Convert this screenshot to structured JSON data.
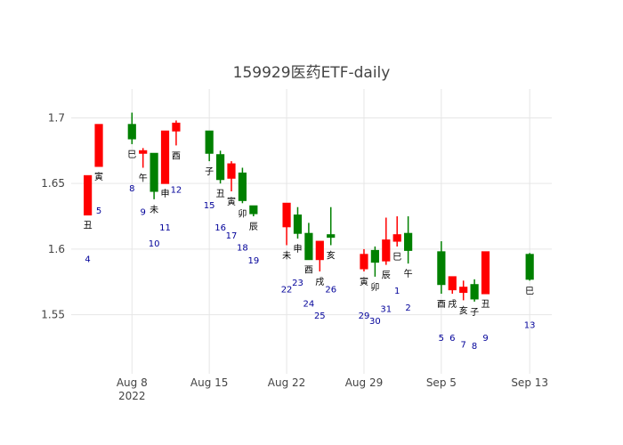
{
  "chart_data": {
    "type": "candlestick",
    "title": "159929医药ETF-daily",
    "colors": {
      "up": "#ff0000",
      "down": "#008000",
      "grid": "#e6e6e6",
      "label": "#000099"
    },
    "y_range": [
      1.505,
      1.722
    ],
    "y_ticks": [
      1.55,
      1.6,
      1.65,
      1.7
    ],
    "x_ticks": [
      {
        "date": "2022-08-08",
        "label": "Aug 8",
        "sublabel": "2022"
      },
      {
        "date": "2022-08-15",
        "label": "Aug 15",
        "sublabel": ""
      },
      {
        "date": "2022-08-22",
        "label": "Aug 22",
        "sublabel": ""
      },
      {
        "date": "2022-08-29",
        "label": "Aug 29",
        "sublabel": ""
      },
      {
        "date": "2022-09-05",
        "label": "Sep 5",
        "sublabel": ""
      },
      {
        "date": "2022-09-13",
        "label": "Sep 13",
        "sublabel": ""
      }
    ],
    "candles": [
      {
        "date": "2022-08-04",
        "open": 1.626,
        "high": 1.656,
        "low": 1.626,
        "close": 1.656,
        "branch": "丑",
        "day": "4"
      },
      {
        "date": "2022-08-05",
        "open": 1.663,
        "high": 1.695,
        "low": 1.663,
        "close": 1.695,
        "branch": "寅",
        "day": "5"
      },
      {
        "date": "2022-08-08",
        "open": 1.695,
        "high": 1.704,
        "low": 1.68,
        "close": 1.684,
        "branch": "巳",
        "day": "8"
      },
      {
        "date": "2022-08-09",
        "open": 1.673,
        "high": 1.677,
        "low": 1.662,
        "close": 1.675,
        "branch": "午",
        "day": "9"
      },
      {
        "date": "2022-08-10",
        "open": 1.673,
        "high": 1.673,
        "low": 1.638,
        "close": 1.644,
        "branch": "未",
        "day": "10"
      },
      {
        "date": "2022-08-11",
        "open": 1.65,
        "high": 1.69,
        "low": 1.65,
        "close": 1.69,
        "branch": "申",
        "day": "11"
      },
      {
        "date": "2022-08-12",
        "open": 1.69,
        "high": 1.698,
        "low": 1.679,
        "close": 1.696,
        "branch": "酉",
        "day": "12"
      },
      {
        "date": "2022-08-15",
        "open": 1.69,
        "high": 1.69,
        "low": 1.667,
        "close": 1.673,
        "branch": "子",
        "day": "15"
      },
      {
        "date": "2022-08-16",
        "open": 1.672,
        "high": 1.675,
        "low": 1.65,
        "close": 1.653,
        "branch": "丑",
        "day": "16"
      },
      {
        "date": "2022-08-17",
        "open": 1.654,
        "high": 1.667,
        "low": 1.644,
        "close": 1.665,
        "branch": "寅",
        "day": "17"
      },
      {
        "date": "2022-08-18",
        "open": 1.658,
        "high": 1.662,
        "low": 1.635,
        "close": 1.637,
        "branch": "卯",
        "day": "18"
      },
      {
        "date": "2022-08-19",
        "open": 1.633,
        "high": 1.633,
        "low": 1.625,
        "close": 1.627,
        "branch": "辰",
        "day": "19"
      },
      {
        "date": "2022-08-22",
        "open": 1.617,
        "high": 1.635,
        "low": 1.603,
        "close": 1.635,
        "branch": "未",
        "day": "22"
      },
      {
        "date": "2022-08-23",
        "open": 1.626,
        "high": 1.632,
        "low": 1.608,
        "close": 1.612,
        "branch": "申",
        "day": "23"
      },
      {
        "date": "2022-08-24",
        "open": 1.612,
        "high": 1.62,
        "low": 1.592,
        "close": 1.592,
        "branch": "酉",
        "day": "24"
      },
      {
        "date": "2022-08-25",
        "open": 1.592,
        "high": 1.606,
        "low": 1.583,
        "close": 1.606,
        "branch": "戌",
        "day": "25"
      },
      {
        "date": "2022-08-26",
        "open": 1.611,
        "high": 1.632,
        "low": 1.603,
        "close": 1.609,
        "branch": "亥",
        "day": "26"
      },
      {
        "date": "2022-08-29",
        "open": 1.585,
        "high": 1.6,
        "low": 1.583,
        "close": 1.596,
        "branch": "寅",
        "day": "29"
      },
      {
        "date": "2022-08-30",
        "open": 1.599,
        "high": 1.602,
        "low": 1.579,
        "close": 1.59,
        "branch": "卯",
        "day": "30"
      },
      {
        "date": "2022-08-31",
        "open": 1.591,
        "high": 1.624,
        "low": 1.588,
        "close": 1.607,
        "branch": "辰",
        "day": "31"
      },
      {
        "date": "2022-09-01",
        "open": 1.606,
        "high": 1.625,
        "low": 1.602,
        "close": 1.611,
        "branch": "巳",
        "day": "1"
      },
      {
        "date": "2022-09-02",
        "open": 1.612,
        "high": 1.625,
        "low": 1.589,
        "close": 1.599,
        "branch": "午",
        "day": "2"
      },
      {
        "date": "2022-09-05",
        "open": 1.598,
        "high": 1.606,
        "low": 1.566,
        "close": 1.573,
        "branch": "酉",
        "day": "5"
      },
      {
        "date": "2022-09-06",
        "open": 1.569,
        "high": 1.579,
        "low": 1.566,
        "close": 1.579,
        "branch": "戌",
        "day": "6"
      },
      {
        "date": "2022-09-07",
        "open": 1.567,
        "high": 1.576,
        "low": 1.561,
        "close": 1.571,
        "branch": "亥",
        "day": "7"
      },
      {
        "date": "2022-09-08",
        "open": 1.573,
        "high": 1.577,
        "low": 1.56,
        "close": 1.562,
        "branch": "子",
        "day": "8"
      },
      {
        "date": "2022-09-09",
        "open": 1.566,
        "high": 1.598,
        "low": 1.566,
        "close": 1.598,
        "branch": "丑",
        "day": "9"
      },
      {
        "date": "2022-09-13",
        "open": 1.596,
        "high": 1.597,
        "low": 1.576,
        "close": 1.577,
        "branch": "巳",
        "day": "13"
      }
    ]
  }
}
